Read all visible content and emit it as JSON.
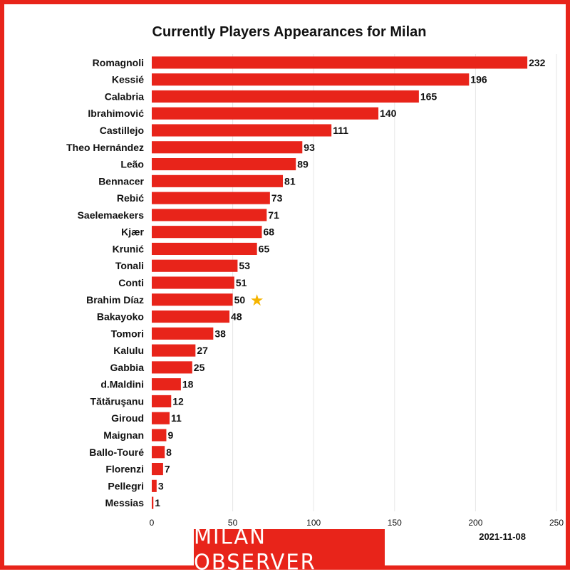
{
  "title": "Currently Players Appearances for Milan",
  "date": "2021-11-08",
  "logo_text": "MILAN OBSERVER",
  "colors": {
    "bar": "#e8241a",
    "frame": "#e8241a",
    "star": "#f5b400",
    "grid": "#e6e6e6"
  },
  "chart_data": {
    "type": "bar",
    "orientation": "horizontal",
    "title": "Currently Players Appearances for Milan",
    "xlabel": "",
    "ylabel": "",
    "xlim": [
      0,
      250
    ],
    "xticks": [
      0,
      50,
      100,
      150,
      200,
      250
    ],
    "grid": true,
    "highlight": {
      "category": "Brahim Díaz",
      "marker": "star-icon"
    },
    "categories": [
      "Romagnoli",
      "Kessié",
      "Calabria",
      "Ibrahimović",
      "Castillejo",
      "Theo Hernández",
      "Leão",
      "Bennacer",
      "Rebić",
      "Saelemaekers",
      "Kjær",
      "Krunić",
      "Tonali",
      "Conti",
      "Brahim Díaz",
      "Bakayoko",
      "Tomori",
      "Kalulu",
      "Gabbia",
      "d.Maldini",
      "Tătăruşanu",
      "Giroud",
      "Maignan",
      "Ballo-Touré",
      "Florenzi",
      "Pellegri",
      "Messias"
    ],
    "values": [
      232,
      196,
      165,
      140,
      111,
      93,
      89,
      81,
      73,
      71,
      68,
      65,
      53,
      51,
      50,
      48,
      38,
      27,
      25,
      18,
      12,
      11,
      9,
      8,
      7,
      3,
      1
    ]
  }
}
